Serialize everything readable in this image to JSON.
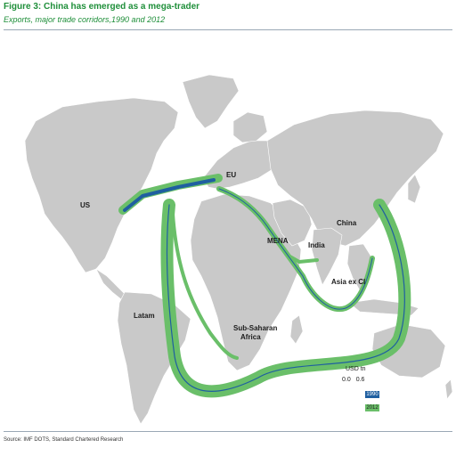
{
  "header": {
    "title": "Figure 3: China has emerged as a mega-trader",
    "subtitle": "Exports, major trade corridors,1990 and 2012"
  },
  "regions": {
    "us": "US",
    "eu": "EU",
    "china": "China",
    "mena": "MENA",
    "india": "India",
    "asia_ex_ci": "Asia ex CI",
    "latam": "Latam",
    "ssa_line1": "Sub-Saharan",
    "ssa_line2": "Africa"
  },
  "legend": {
    "units": "USD tn",
    "tick_min": "0.0",
    "tick_max": "0.6",
    "year_1990": "1990",
    "year_2012": "2012"
  },
  "source": "Source: IMF DOTS,  Standard Chartered Research",
  "colors": {
    "land": "#c9c9c9",
    "ocean": "#ffffff",
    "flow_2012": "#6abf69",
    "flow_1990": "#1f5fa0",
    "title": "#1f8f3a"
  }
}
